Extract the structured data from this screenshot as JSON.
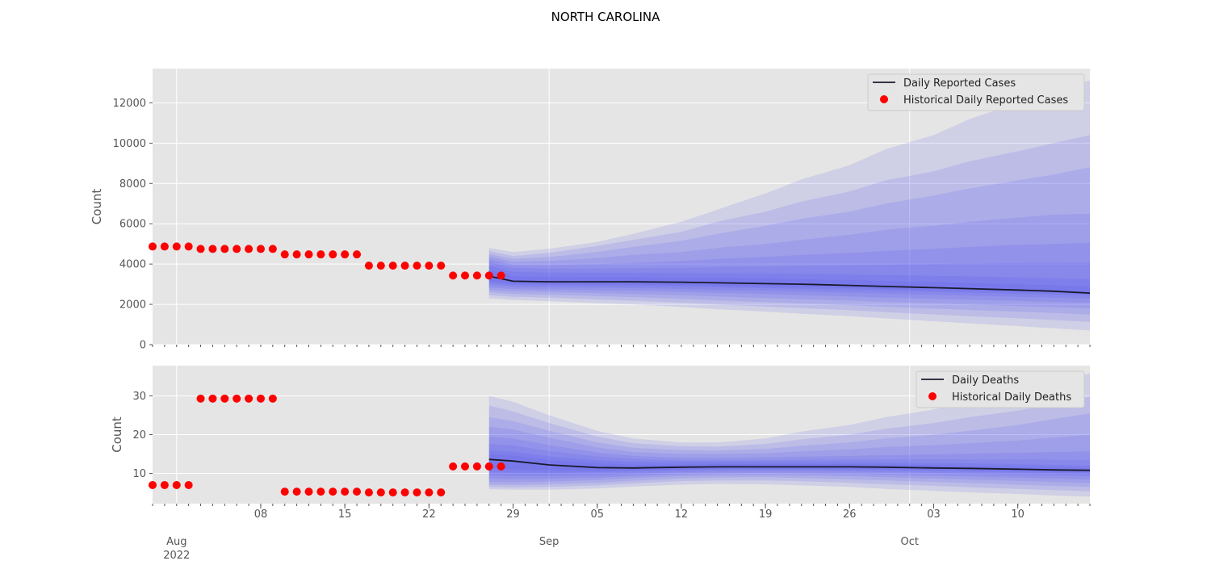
{
  "title": "NORTH CAROLINA",
  "colors": {
    "panel_background": "#e5e5e5",
    "grid": "#ffffff",
    "band": "#5050f0",
    "median_line": "#1a1a2e",
    "historical_points": "#ff0000",
    "axis_text": "#555555"
  },
  "x_axis": {
    "major_ticks": [
      {
        "date": "2022-08-08",
        "label": "08"
      },
      {
        "date": "2022-08-15",
        "label": "15"
      },
      {
        "date": "2022-08-22",
        "label": "22"
      },
      {
        "date": "2022-08-29",
        "label": "29"
      },
      {
        "date": "2022-09-05",
        "label": "05"
      },
      {
        "date": "2022-09-12",
        "label": "12"
      },
      {
        "date": "2022-09-19",
        "label": "19"
      },
      {
        "date": "2022-09-26",
        "label": "26"
      },
      {
        "date": "2022-10-03",
        "label": "03"
      },
      {
        "date": "2022-10-10",
        "label": "10"
      }
    ],
    "month_labels": [
      {
        "date": "2022-08-01",
        "label": "Aug",
        "year": "2022"
      },
      {
        "date": "2022-09-01",
        "label": "Sep"
      },
      {
        "date": "2022-10-01",
        "label": "Oct"
      }
    ]
  },
  "chart_data": [
    {
      "type": "line",
      "title": "",
      "xlabel": "",
      "ylabel": "Count",
      "xlim": [
        "2022-07-30",
        "2022-10-16"
      ],
      "ylim": [
        0,
        13700
      ],
      "yticks": [
        0,
        2000,
        4000,
        6000,
        8000,
        10000,
        12000
      ],
      "grid": true,
      "legend_position": "top-right",
      "legend": [
        "Daily Reported Cases",
        "Historical Daily Reported Cases"
      ],
      "historical": {
        "name": "Historical Daily Reported Cases",
        "x": [
          "2022-07-30",
          "2022-07-31",
          "2022-08-01",
          "2022-08-02",
          "2022-08-03",
          "2022-08-04",
          "2022-08-05",
          "2022-08-06",
          "2022-08-07",
          "2022-08-08",
          "2022-08-09",
          "2022-08-10",
          "2022-08-11",
          "2022-08-12",
          "2022-08-13",
          "2022-08-14",
          "2022-08-15",
          "2022-08-16",
          "2022-08-17",
          "2022-08-18",
          "2022-08-19",
          "2022-08-20",
          "2022-08-21",
          "2022-08-22",
          "2022-08-23",
          "2022-08-24",
          "2022-08-25",
          "2022-08-26",
          "2022-08-27",
          "2022-08-28"
        ],
        "y": [
          4870,
          4870,
          4870,
          4870,
          4750,
          4750,
          4750,
          4750,
          4750,
          4750,
          4750,
          4480,
          4480,
          4480,
          4480,
          4480,
          4480,
          4480,
          3920,
          3920,
          3920,
          3920,
          3920,
          3920,
          3920,
          3430,
          3430,
          3430,
          3430,
          3430
        ]
      },
      "forecast": {
        "name": "Daily Reported Cases",
        "x": [
          "2022-08-27",
          "2022-08-29",
          "2022-09-01",
          "2022-09-05",
          "2022-09-08",
          "2022-09-12",
          "2022-09-15",
          "2022-09-19",
          "2022-09-22",
          "2022-09-26",
          "2022-09-29",
          "2022-10-03",
          "2022-10-06",
          "2022-10-10",
          "2022-10-13",
          "2022-10-16"
        ],
        "median": [
          3400,
          3150,
          3120,
          3120,
          3120,
          3100,
          3070,
          3030,
          3000,
          2940,
          2890,
          2830,
          2780,
          2710,
          2650,
          2560
        ],
        "bands": [
          {
            "lower": [
              2300,
              2220,
              2160,
              2060,
              1990,
              1870,
              1760,
              1640,
              1540,
              1420,
              1300,
              1160,
              1050,
              920,
              810,
              700
            ],
            "upper": [
              4800,
              4600,
              4760,
              5100,
              5500,
              6100,
              6700,
              7500,
              8200,
              8900,
              9700,
              10400,
              11200,
              12000,
              12800,
              13100
            ]
          },
          {
            "lower": [
              2460,
              2380,
              2330,
              2240,
              2180,
              2080,
              1990,
              1890,
              1810,
              1710,
              1610,
              1500,
              1410,
              1310,
              1220,
              1130
            ],
            "upper": [
              4650,
              4400,
              4560,
              4900,
              5200,
              5600,
              6100,
              6600,
              7100,
              7600,
              8150,
              8600,
              9100,
              9600,
              10000,
              10400
            ]
          },
          {
            "lower": [
              2600,
              2520,
              2480,
              2410,
              2360,
              2270,
              2200,
              2110,
              2040,
              1960,
              1880,
              1790,
              1720,
              1640,
              1570,
              1500
            ],
            "upper": [
              4500,
              4250,
              4350,
              4600,
              4850,
              5150,
              5500,
              5900,
              6250,
              6600,
              7000,
              7400,
              7750,
              8150,
              8450,
              8800
            ]
          },
          {
            "lower": [
              2720,
              2650,
              2610,
              2560,
              2520,
              2450,
              2390,
              2320,
              2260,
              2190,
              2120,
              2050,
              1990,
              1920,
              1860,
              1800
            ],
            "upper": [
              4380,
              4100,
              4150,
              4300,
              4450,
              4600,
              4800,
              5000,
              5200,
              5450,
              5700,
              5900,
              6100,
              6300,
              6450,
              6500
            ]
          },
          {
            "lower": [
              2840,
              2760,
              2730,
              2700,
              2670,
              2620,
              2570,
              2510,
              2460,
              2400,
              2340,
              2280,
              2230,
              2170,
              2120,
              2070
            ],
            "upper": [
              4250,
              3950,
              3950,
              4000,
              4050,
              4150,
              4250,
              4350,
              4450,
              4550,
              4650,
              4750,
              4850,
              4950,
              5000,
              5050
            ]
          },
          {
            "lower": [
              2950,
              2860,
              2840,
              2820,
              2800,
              2760,
              2720,
              2670,
              2630,
              2580,
              2530,
              2470,
              2430,
              2370,
              2330,
              2280
            ],
            "upper": [
              4100,
              3800,
              3780,
              3780,
              3800,
              3820,
              3850,
              3880,
              3910,
              3940,
              3970,
              4000,
              4030,
              4050,
              4070,
              4080
            ]
          },
          {
            "lower": [
              3060,
              2950,
              2940,
              2930,
              2910,
              2880,
              2850,
              2800,
              2770,
              2720,
              2680,
              2620,
              2580,
              2520,
              2480,
              2430
            ],
            "upper": [
              3920,
              3620,
              3580,
              3570,
              3570,
              3560,
              3550,
              3540,
              3520,
              3490,
              3460,
              3420,
              3390,
              3340,
              3300,
              3250
            ]
          },
          {
            "lower": [
              3160,
              3030,
              3010,
              3000,
              2990,
              2960,
              2930,
              2890,
              2860,
              2810,
              2770,
              2710,
              2670,
              2610,
              2570,
              2510
            ],
            "upper": [
              3700,
              3400,
              3360,
              3350,
              3350,
              3330,
              3310,
              3280,
              3250,
              3210,
              3160,
              3110,
              3060,
              3000,
              2950,
              2880
            ]
          }
        ]
      }
    },
    {
      "type": "line",
      "title": "",
      "xlabel": "",
      "ylabel": "Count",
      "xlim": [
        "2022-07-30",
        "2022-10-16"
      ],
      "ylim": [
        2.2,
        37.8
      ],
      "yticks": [
        10,
        20,
        30
      ],
      "grid": true,
      "legend_position": "top-right",
      "legend": [
        "Daily Deaths",
        "Historical Daily Deaths"
      ],
      "historical": {
        "name": "Historical Daily Deaths",
        "x": [
          "2022-07-30",
          "2022-07-31",
          "2022-08-01",
          "2022-08-02",
          "2022-08-03",
          "2022-08-04",
          "2022-08-05",
          "2022-08-06",
          "2022-08-07",
          "2022-08-08",
          "2022-08-09",
          "2022-08-10",
          "2022-08-11",
          "2022-08-12",
          "2022-08-13",
          "2022-08-14",
          "2022-08-15",
          "2022-08-16",
          "2022-08-17",
          "2022-08-18",
          "2022-08-19",
          "2022-08-20",
          "2022-08-21",
          "2022-08-22",
          "2022-08-23",
          "2022-08-24",
          "2022-08-25",
          "2022-08-26",
          "2022-08-27",
          "2022-08-28"
        ],
        "y": [
          7,
          7,
          7,
          7,
          29.3,
          29.3,
          29.3,
          29.3,
          29.3,
          29.3,
          29.3,
          5.3,
          5.3,
          5.3,
          5.3,
          5.3,
          5.3,
          5.3,
          5.1,
          5.1,
          5.1,
          5.1,
          5.1,
          5.1,
          5.1,
          11.8,
          11.8,
          11.8,
          11.8,
          11.8
        ]
      },
      "forecast": {
        "name": "Daily Deaths",
        "x": [
          "2022-08-27",
          "2022-08-29",
          "2022-09-01",
          "2022-09-05",
          "2022-09-08",
          "2022-09-12",
          "2022-09-15",
          "2022-09-19",
          "2022-09-22",
          "2022-09-26",
          "2022-09-29",
          "2022-10-03",
          "2022-10-06",
          "2022-10-10",
          "2022-10-13",
          "2022-10-16"
        ],
        "median": [
          13.6,
          13.2,
          12.2,
          11.5,
          11.4,
          11.6,
          11.7,
          11.7,
          11.7,
          11.7,
          11.6,
          11.4,
          11.3,
          11.1,
          10.9,
          10.8
        ],
        "bands": [
          {
            "lower": [
              5.9,
              5.8,
              5.8,
              6.1,
              6.6,
              7.1,
              7.3,
              7.2,
              6.9,
              6.5,
              6.0,
              5.5,
              5.1,
              4.7,
              4.3,
              4.0
            ],
            "upper": [
              30.0,
              28.5,
              25.0,
              21.0,
              19.0,
              18.0,
              18.0,
              19.0,
              20.8,
              22.5,
              24.5,
              26.5,
              28.5,
              31.0,
              33.5,
              35.8
            ]
          },
          {
            "lower": [
              6.5,
              6.4,
              6.5,
              6.9,
              7.4,
              8.0,
              8.2,
              8.2,
              8.0,
              7.6,
              7.2,
              6.8,
              6.4,
              6.0,
              5.7,
              5.4
            ],
            "upper": [
              27.5,
              26.0,
              23.0,
              19.5,
              17.8,
              17.0,
              16.9,
              17.6,
              18.8,
              20.0,
              21.5,
              23.0,
              24.5,
              26.2,
              28.0,
              29.8
            ]
          },
          {
            "lower": [
              7.1,
              7.0,
              7.2,
              7.6,
              8.1,
              8.7,
              8.9,
              9.0,
              8.8,
              8.5,
              8.2,
              7.8,
              7.5,
              7.1,
              6.8,
              6.5
            ],
            "upper": [
              24.5,
              23.5,
              21.0,
              18.0,
              16.6,
              16.0,
              15.9,
              16.3,
              17.1,
              18.0,
              19.0,
              20.0,
              21.0,
              22.5,
              24.0,
              25.5
            ]
          },
          {
            "lower": [
              7.8,
              7.7,
              7.9,
              8.3,
              8.8,
              9.3,
              9.5,
              9.6,
              9.5,
              9.3,
              9.0,
              8.7,
              8.4,
              8.1,
              7.8,
              7.5
            ],
            "upper": [
              22.0,
              21.3,
              19.2,
              16.7,
              15.5,
              15.0,
              15.0,
              15.2,
              15.7,
              16.2,
              16.8,
              17.3,
              17.8,
              18.5,
              19.2,
              20.0
            ]
          },
          {
            "lower": [
              8.6,
              8.5,
              8.6,
              8.9,
              9.3,
              9.8,
              10.0,
              10.1,
              10.0,
              9.9,
              9.7,
              9.4,
              9.2,
              8.9,
              8.7,
              8.4
            ],
            "upper": [
              19.5,
              19.0,
              17.3,
              15.4,
              14.5,
              14.0,
              14.0,
              14.1,
              14.3,
              14.5,
              14.7,
              14.9,
              15.1,
              15.3,
              15.5,
              15.7
            ]
          },
          {
            "lower": [
              9.5,
              9.3,
              9.3,
              9.6,
              9.9,
              10.3,
              10.5,
              10.6,
              10.6,
              10.5,
              10.3,
              10.1,
              9.9,
              9.7,
              9.5,
              9.3
            ],
            "upper": [
              17.6,
              17.2,
              15.8,
              14.4,
              13.7,
              13.4,
              13.4,
              13.4,
              13.5,
              13.6,
              13.6,
              13.6,
              13.6,
              13.6,
              13.5,
              13.5
            ]
          },
          {
            "lower": [
              10.4,
              10.2,
              10.2,
              10.3,
              10.5,
              10.8,
              11.0,
              11.0,
              11.0,
              10.9,
              10.8,
              10.6,
              10.4,
              10.2,
              10.0,
              9.9
            ],
            "upper": [
              16.0,
              15.6,
              14.4,
              13.4,
              13.0,
              12.9,
              12.9,
              12.9,
              12.9,
              12.9,
              12.8,
              12.7,
              12.6,
              12.4,
              12.2,
              12.0
            ]
          },
          {
            "lower": [
              11.3,
              11.0,
              10.8,
              10.7,
              10.8,
              11.0,
              11.2,
              11.2,
              11.2,
              11.2,
              11.1,
              10.9,
              10.8,
              10.6,
              10.4,
              10.3
            ],
            "upper": [
              15.0,
              14.6,
              13.5,
              12.6,
              12.3,
              12.3,
              12.4,
              12.4,
              12.4,
              12.4,
              12.3,
              12.2,
              12.0,
              11.8,
              11.6,
              11.4
            ]
          }
        ]
      }
    }
  ]
}
